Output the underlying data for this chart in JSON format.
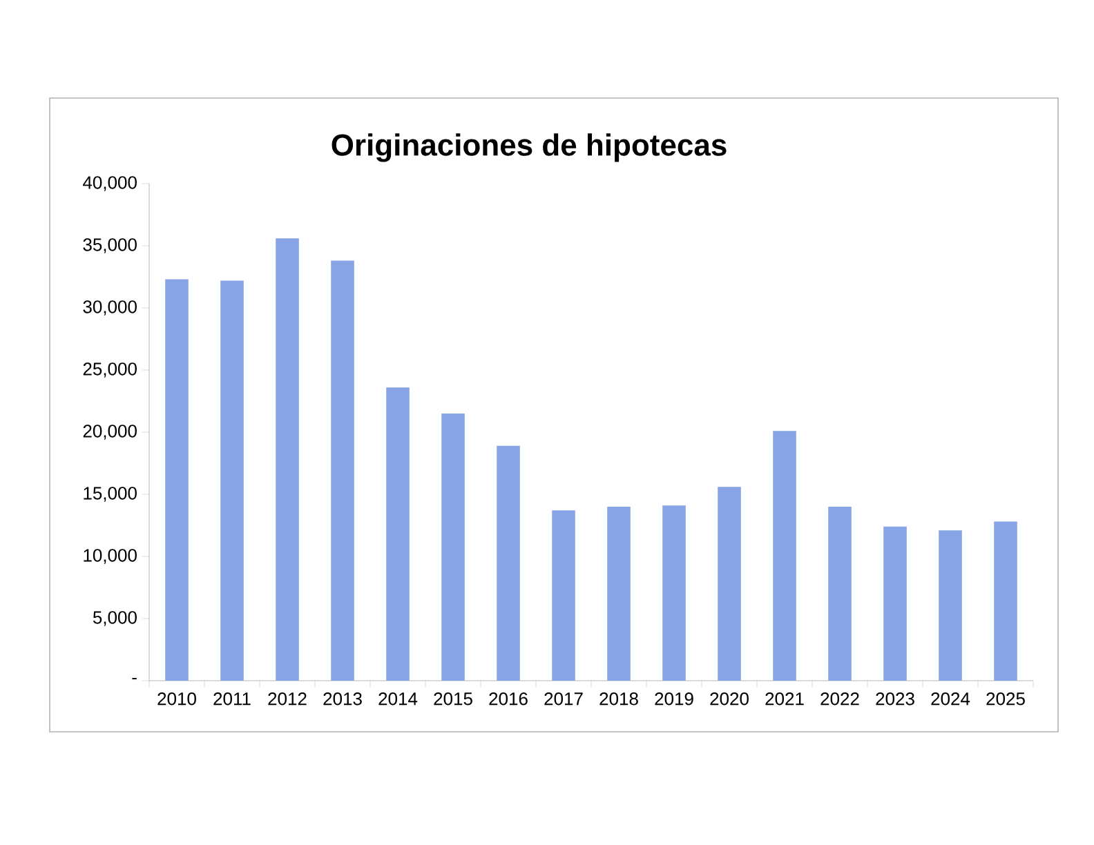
{
  "chart_data": {
    "type": "bar",
    "title": "Originaciones de hipotecas",
    "categories": [
      "2010",
      "2011",
      "2012",
      "2013",
      "2014",
      "2015",
      "2016",
      "2017",
      "2018",
      "2019",
      "2020",
      "2021",
      "2022",
      "2023",
      "2024",
      "2025"
    ],
    "values": [
      32300,
      32200,
      35600,
      33800,
      23600,
      21500,
      18900,
      13700,
      14000,
      14100,
      15600,
      20100,
      14000,
      12400,
      12100,
      12800
    ],
    "color": "#87a5e6",
    "ylim": [
      0,
      40000
    ],
    "yticks": [
      {
        "value": 0,
        "label": "-"
      },
      {
        "value": 5000,
        "label": "5,000"
      },
      {
        "value": 10000,
        "label": "10,000"
      },
      {
        "value": 15000,
        "label": "15,000"
      },
      {
        "value": 20000,
        "label": "20,000"
      },
      {
        "value": 25000,
        "label": "25,000"
      },
      {
        "value": 30000,
        "label": "30,000"
      },
      {
        "value": 35000,
        "label": "35,000"
      },
      {
        "value": 40000,
        "label": "40,000"
      }
    ],
    "grid": false
  }
}
